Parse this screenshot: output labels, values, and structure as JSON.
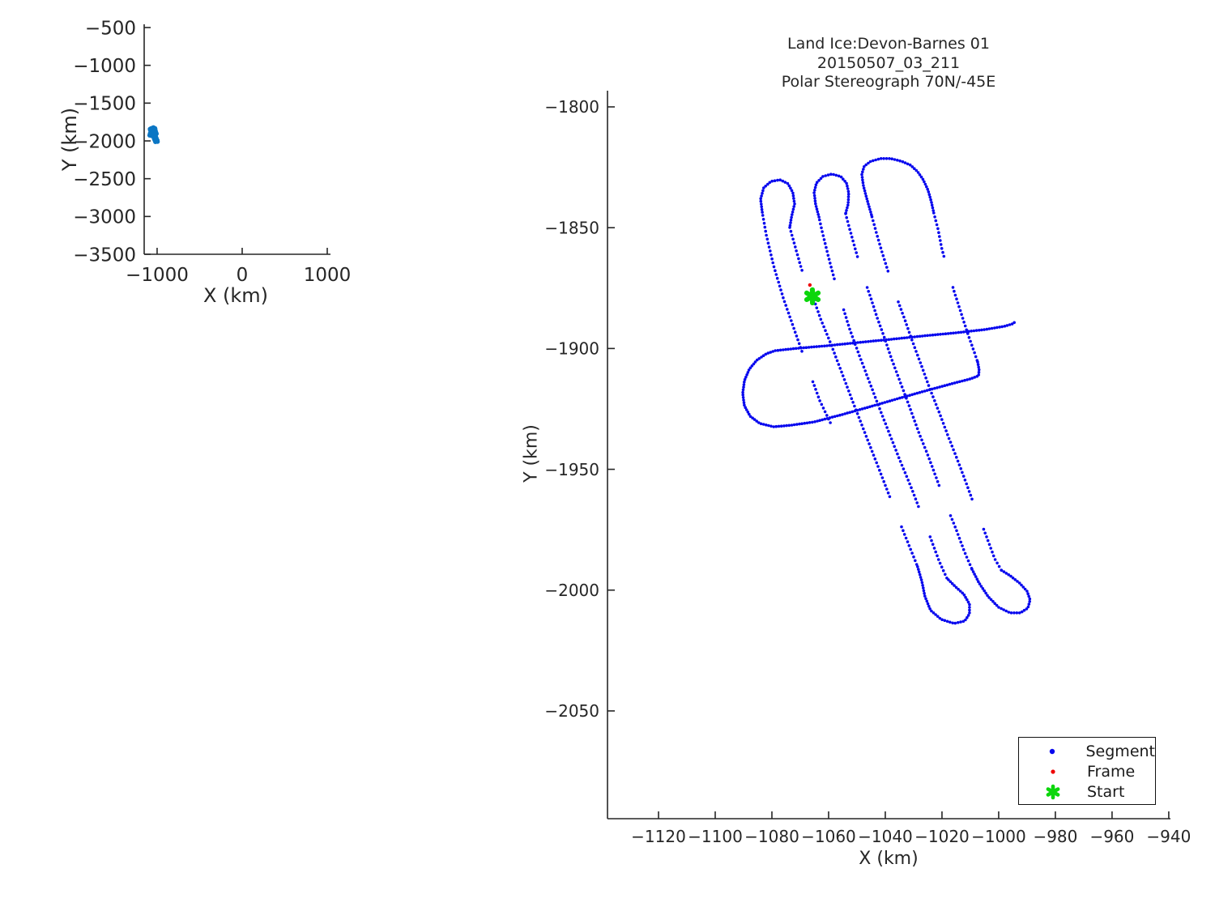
{
  "title": {
    "line1": "Land Ice:Devon-Barnes 01",
    "line2": "20150507_03_211",
    "line3": "Polar Stereograph 70N/-45E"
  },
  "colors": {
    "segment": "#0808ee",
    "frame": "#ee0000",
    "start": "#0cd60c",
    "overview_track": "#0b76c4",
    "axis": "#262626",
    "text": "#262626"
  },
  "overview": {
    "xlabel": "X (km)",
    "ylabel": "Y (km)",
    "xticks": [
      -1000,
      0,
      1000
    ],
    "yticks": [
      -500,
      -1000,
      -1500,
      -2000,
      -2500,
      -3000,
      -3500
    ],
    "xlim": [
      -1152,
      1038
    ],
    "ylim": [
      -3500,
      -457
    ]
  },
  "main": {
    "xlabel": "X (km)",
    "ylabel": "Y (km)",
    "xticks": [
      -1120,
      -1100,
      -1080,
      -1060,
      -1040,
      -1020,
      -1000,
      -980,
      -960,
      -940
    ],
    "yticks": [
      -1800,
      -1850,
      -1900,
      -1950,
      -2000,
      -2050
    ],
    "xlim": [
      -1138,
      -939.4
    ],
    "ylim": [
      -2094.6,
      -1793.3
    ]
  },
  "legend": {
    "items": [
      {
        "label": "Segment",
        "marker": "dot"
      },
      {
        "label": "Frame",
        "marker": "dot"
      },
      {
        "label": "Start",
        "marker": "hexagram"
      }
    ]
  },
  "chart_data": {
    "type": "scatter",
    "title": [
      "Land Ice:Devon-Barnes 01",
      "20150507_03_211",
      "Polar Stereograph 70N/-45E"
    ],
    "xlabel": "X (km)",
    "ylabel": "Y (km)",
    "series": [
      {
        "name": "Segment",
        "marker": "dot",
        "color_key": "segment",
        "subpaths": [
          {
            "spacing": 5.0,
            "gaps": true,
            "pts": [
              [
                -1059.4,
                -1930.7
              ],
              [
                -1063.1,
                -1921.6
              ],
              [
                -1068.0,
                -1905.9
              ],
              [
                -1072.3,
                -1891.5
              ],
              [
                -1076.0,
                -1879.1
              ],
              [
                -1079.4,
                -1865.7
              ],
              [
                -1082.0,
                -1852.9
              ],
              [
                -1083.4,
                -1843.6
              ]
            ]
          },
          {
            "spacing": 3.4,
            "gaps": false,
            "pts": [
              [
                -1083.4,
                -1843.6
              ],
              [
                -1084.0,
                -1838.2
              ],
              [
                -1082.9,
                -1833.5
              ],
              [
                -1080.3,
                -1830.8
              ],
              [
                -1077.1,
                -1830.2
              ],
              [
                -1074.3,
                -1831.8
              ],
              [
                -1072.6,
                -1835.5
              ],
              [
                -1072.0,
                -1840.2
              ],
              [
                -1073.1,
                -1845.6
              ],
              [
                -1073.7,
                -1849.9
              ]
            ]
          },
          {
            "spacing": 5.0,
            "gaps": true,
            "pts": [
              [
                -1073.7,
                -1849.9
              ],
              [
                -1072.0,
                -1857.0
              ],
              [
                -1070.0,
                -1865.3
              ],
              [
                -1068.0,
                -1873.1
              ],
              [
                -1065.4,
                -1879.1
              ],
              [
                -1062.9,
                -1887.5
              ],
              [
                -1059.4,
                -1897.5
              ],
              [
                -1055.7,
                -1908.9
              ],
              [
                -1051.7,
                -1921.3
              ],
              [
                -1047.7,
                -1933.4
              ],
              [
                -1043.7,
                -1945.4
              ],
              [
                -1039.7,
                -1957.5
              ],
              [
                -1035.7,
                -1969.6
              ],
              [
                -1031.7,
                -1981.3
              ],
              [
                -1028.6,
                -1990.3
              ]
            ]
          },
          {
            "spacing": 3.4,
            "gaps": false,
            "pts": [
              [
                -1028.6,
                -1990.3
              ],
              [
                -1027.1,
                -1996.4
              ],
              [
                -1026.0,
                -2002.7
              ],
              [
                -1024.0,
                -2008.4
              ],
              [
                -1020.3,
                -2012.1
              ],
              [
                -1015.7,
                -2013.8
              ],
              [
                -1012.0,
                -2012.8
              ],
              [
                -1010.3,
                -2009.8
              ],
              [
                -1010.3,
                -2005.8
              ],
              [
                -1012.3,
                -2001.7
              ],
              [
                -1015.4,
                -1998.4
              ],
              [
                -1018.3,
                -1995.0
              ]
            ]
          },
          {
            "spacing": 5.0,
            "gaps": true,
            "pts": [
              [
                -1018.3,
                -1995.0
              ],
              [
                -1020.9,
                -1988.3
              ],
              [
                -1024.3,
                -1977.6
              ],
              [
                -1027.7,
                -1967.2
              ],
              [
                -1031.1,
                -1956.8
              ],
              [
                -1034.9,
                -1946.1
              ],
              [
                -1038.6,
                -1935.1
              ],
              [
                -1042.3,
                -1924.0
              ],
              [
                -1046.0,
                -1912.6
              ],
              [
                -1049.7,
                -1901.2
              ],
              [
                -1052.6,
                -1891.8
              ],
              [
                -1055.1,
                -1882.4
              ],
              [
                -1057.7,
                -1872.4
              ],
              [
                -1060.0,
                -1862.3
              ],
              [
                -1062.0,
                -1852.9
              ],
              [
                -1063.4,
                -1845.6
              ]
            ]
          },
          {
            "spacing": 3.4,
            "gaps": false,
            "pts": [
              [
                -1063.4,
                -1845.6
              ],
              [
                -1064.6,
                -1840.2
              ],
              [
                -1065.1,
                -1835.5
              ],
              [
                -1064.3,
                -1831.5
              ],
              [
                -1062.0,
                -1828.8
              ],
              [
                -1058.9,
                -1827.8
              ],
              [
                -1055.7,
                -1828.8
              ],
              [
                -1053.7,
                -1831.5
              ],
              [
                -1052.9,
                -1835.5
              ],
              [
                -1053.1,
                -1840.2
              ],
              [
                -1054.0,
                -1844.2
              ]
            ]
          },
          {
            "spacing": 5.0,
            "gaps": true,
            "pts": [
              [
                -1054.0,
                -1844.2
              ],
              [
                -1053.4,
                -1846.9
              ],
              [
                -1052.0,
                -1852.9
              ],
              [
                -1050.0,
                -1861.3
              ],
              [
                -1047.7,
                -1870.4
              ],
              [
                -1045.1,
                -1879.1
              ],
              [
                -1042.9,
                -1887.1
              ],
              [
                -1040.3,
                -1895.5
              ],
              [
                -1037.7,
                -1904.6
              ],
              [
                -1034.6,
                -1914.3
              ],
              [
                -1031.4,
                -1924.3
              ],
              [
                -1028.3,
                -1934.4
              ],
              [
                -1024.9,
                -1944.4
              ],
              [
                -1021.7,
                -1954.5
              ],
              [
                -1018.6,
                -1964.5
              ],
              [
                -1015.1,
                -1974.6
              ],
              [
                -1012.0,
                -1984.3
              ],
              [
                -1009.4,
                -1991.4
              ]
            ]
          },
          {
            "spacing": 3.4,
            "gaps": false,
            "pts": [
              [
                -1009.4,
                -1991.4
              ],
              [
                -1006.9,
                -1997.1
              ],
              [
                -1003.7,
                -2002.7
              ],
              [
                -1000.0,
                -2007.1
              ],
              [
                -996.0,
                -2009.4
              ],
              [
                -992.3,
                -2009.4
              ],
              [
                -989.7,
                -2007.4
              ],
              [
                -988.9,
                -2004.1
              ],
              [
                -990.0,
                -2000.4
              ],
              [
                -992.6,
                -1997.1
              ],
              [
                -996.0,
                -1994.0
              ],
              [
                -999.1,
                -1991.7
              ]
            ]
          },
          {
            "spacing": 5.0,
            "gaps": true,
            "pts": [
              [
                -999.1,
                -1991.7
              ],
              [
                -1001.4,
                -1987.0
              ],
              [
                -1004.6,
                -1976.9
              ],
              [
                -1008.0,
                -1966.9
              ],
              [
                -1011.1,
                -1956.8
              ],
              [
                -1014.3,
                -1946.8
              ],
              [
                -1017.7,
                -1936.7
              ],
              [
                -1020.9,
                -1926.7
              ],
              [
                -1024.3,
                -1916.6
              ],
              [
                -1027.4,
                -1906.6
              ],
              [
                -1030.6,
                -1896.5
              ],
              [
                -1033.1,
                -1888.1
              ],
              [
                -1035.7,
                -1879.8
              ],
              [
                -1038.6,
                -1869.7
              ],
              [
                -1041.1,
                -1860.3
              ],
              [
                -1043.1,
                -1852.3
              ],
              [
                -1044.9,
                -1844.6
              ]
            ]
          },
          {
            "spacing": 3.4,
            "gaps": false,
            "pts": [
              [
                -1044.9,
                -1844.6
              ],
              [
                -1046.3,
                -1838.9
              ],
              [
                -1047.7,
                -1832.8
              ],
              [
                -1048.3,
                -1827.8
              ],
              [
                -1047.4,
                -1824.5
              ],
              [
                -1045.1,
                -1822.5
              ],
              [
                -1041.7,
                -1821.4
              ],
              [
                -1038.0,
                -1821.4
              ],
              [
                -1034.3,
                -1822.5
              ],
              [
                -1031.1,
                -1824.1
              ],
              [
                -1028.6,
                -1826.8
              ],
              [
                -1026.6,
                -1830.2
              ],
              [
                -1024.9,
                -1834.5
              ],
              [
                -1023.7,
                -1839.5
              ],
              [
                -1022.9,
                -1843.9
              ]
            ]
          },
          {
            "spacing": 5.0,
            "gaps": true,
            "pts": [
              [
                -1022.9,
                -1843.9
              ],
              [
                -1021.4,
                -1850.6
              ],
              [
                -1020.0,
                -1859.0
              ],
              [
                -1018.0,
                -1867.4
              ],
              [
                -1015.7,
                -1876.4
              ],
              [
                -1013.4,
                -1884.8
              ],
              [
                -1011.1,
                -1893.2
              ],
              [
                -1008.9,
                -1900.5
              ],
              [
                -1007.4,
                -1905.6
              ]
            ]
          },
          {
            "spacing": 3.2,
            "gaps": false,
            "pts": [
              [
                -1007.4,
                -1905.6
              ],
              [
                -1006.9,
                -1908.9
              ],
              [
                -1007.1,
                -1911.3
              ],
              [
                -1010.0,
                -1912.6
              ],
              [
                -1016.6,
                -1914.6
              ],
              [
                -1025.1,
                -1917.3
              ],
              [
                -1035.1,
                -1920.6
              ],
              [
                -1045.1,
                -1924.0
              ],
              [
                -1055.1,
                -1927.3
              ],
              [
                -1065.1,
                -1930.4
              ],
              [
                -1072.9,
                -1931.7
              ],
              [
                -1079.4,
                -1932.4
              ],
              [
                -1084.3,
                -1931.0
              ],
              [
                -1087.7,
                -1928.0
              ],
              [
                -1089.7,
                -1923.7
              ],
              [
                -1090.3,
                -1918.6
              ],
              [
                -1089.7,
                -1913.3
              ],
              [
                -1088.0,
                -1908.6
              ],
              [
                -1085.4,
                -1904.9
              ],
              [
                -1082.0,
                -1902.2
              ],
              [
                -1078.9,
                -1900.9
              ],
              [
                -1070.9,
                -1899.9
              ],
              [
                -1060.9,
                -1898.9
              ],
              [
                -1049.4,
                -1897.5
              ],
              [
                -1038.0,
                -1896.2
              ],
              [
                -1026.6,
                -1894.8
              ],
              [
                -1015.1,
                -1893.5
              ],
              [
                -1005.1,
                -1892.2
              ],
              [
                -998.0,
                -1890.8
              ],
              [
                -995.1,
                -1889.8
              ],
              [
                -994.0,
                -1888.8
              ]
            ]
          }
        ]
      },
      {
        "name": "Frame",
        "marker": "dot",
        "color_key": "frame",
        "pts": [
          [
            -1066.6,
            -1873.7
          ],
          [
            -1066.0,
            -1875.7
          ],
          [
            -1065.7,
            -1877.1
          ]
        ]
      },
      {
        "name": "Start",
        "marker": "hexagram",
        "color_key": "start",
        "pts": [
          [
            -1065.7,
            -1878.4
          ]
        ]
      }
    ]
  }
}
